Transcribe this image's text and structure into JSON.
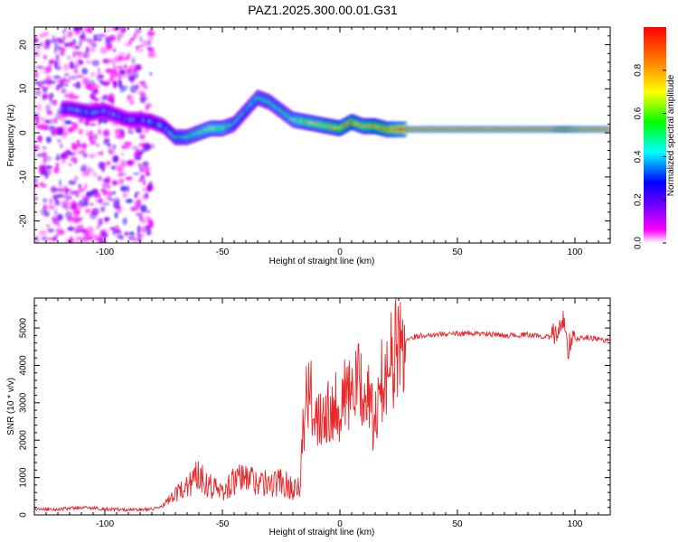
{
  "figure": {
    "title": "PAZ1.2025.300.00.01.G31"
  },
  "chart_data": [
    {
      "type": "heatmap",
      "title": "PAZ1.2025.300.00.01.G31",
      "xlabel": "Height of straight line (km)",
      "ylabel": "Frequency (Hz)",
      "xlim": [
        -130,
        115
      ],
      "ylim": [
        -25,
        24
      ],
      "xticks": [
        -100,
        -50,
        0,
        50,
        100
      ],
      "yticks": [
        -20,
        -10,
        0,
        10,
        20
      ],
      "colorbar": {
        "label": "Normalized spectral amplitude",
        "range": [
          0,
          1
        ],
        "ticks": [
          "0.0",
          "0.2",
          "0.4",
          "0.6",
          "0.8"
        ],
        "colors": [
          "#ffffff",
          "#ff00ff",
          "#8000ff",
          "#0000ff",
          "#00ffff",
          "#00ff00",
          "#ffff00",
          "#ff8000",
          "#ff0000"
        ]
      },
      "ridge": {
        "x": [
          -115,
          -110,
          -105,
          -100,
          -95,
          -90,
          -85,
          -80,
          -75,
          -70,
          -65,
          -60,
          -55,
          -50,
          -45,
          -40,
          -35,
          -30,
          -25,
          -20,
          -15,
          -10,
          -5,
          0,
          5,
          10,
          15,
          20,
          25,
          30,
          40,
          50,
          60,
          70,
          80,
          90,
          95,
          100,
          105,
          110,
          115
        ],
        "y": [
          5.5,
          5,
          4.5,
          5,
          4,
          3,
          3,
          2.5,
          1.5,
          -1,
          -1,
          0,
          1,
          1,
          2,
          5,
          8,
          7,
          5,
          3,
          2.5,
          2,
          1.5,
          1,
          2.5,
          1.5,
          1.5,
          0.8,
          0.8,
          0.8,
          0.8,
          0.8,
          0.8,
          0.8,
          0.8,
          0.8,
          0.8,
          0.8,
          0.8,
          0.8,
          0.8
        ],
        "amplitude": [
          0.3,
          0.35,
          0.35,
          0.3,
          0.3,
          0.3,
          0.3,
          0.35,
          0.35,
          0.45,
          0.5,
          0.55,
          0.6,
          0.6,
          0.45,
          0.45,
          0.5,
          0.5,
          0.5,
          0.55,
          0.65,
          0.65,
          0.7,
          0.75,
          0.8,
          0.7,
          0.8,
          0.85,
          0.95,
          0.95,
          0.95,
          0.95,
          0.95,
          0.95,
          0.95,
          0.95,
          0.8,
          0.9,
          0.95,
          0.95,
          0.95
        ]
      }
    },
    {
      "type": "line",
      "xlabel": "Height of straight line (km)",
      "ylabel": "SNR (10 * v/v)",
      "xlim": [
        -130,
        115
      ],
      "ylim": [
        0,
        5800
      ],
      "xticks": [
        -100,
        -50,
        0,
        50,
        100
      ],
      "yticks": [
        0,
        1000,
        2000,
        3000,
        4000,
        5000
      ],
      "color": "#e8282a",
      "series": [
        {
          "name": "SNR",
          "x": [
            -130,
            -120,
            -110,
            -100,
            -90,
            -80,
            -75,
            -70,
            -65,
            -60,
            -55,
            -50,
            -45,
            -40,
            -35,
            -30,
            -25,
            -20,
            -17,
            -15,
            -13,
            -10,
            -5,
            0,
            5,
            10,
            15,
            18,
            20,
            22,
            25,
            30,
            35,
            40,
            50,
            60,
            70,
            80,
            90,
            93,
            95,
            97,
            100,
            105,
            110,
            115
          ],
          "y": [
            150,
            150,
            200,
            160,
            130,
            150,
            250,
            500,
            800,
            1100,
            800,
            600,
            900,
            1000,
            900,
            800,
            900,
            700,
            900,
            2800,
            3200,
            2700,
            2900,
            3000,
            3300,
            3500,
            2400,
            3600,
            4200,
            4100,
            4500,
            4750,
            4800,
            4830,
            4850,
            4850,
            4800,
            4820,
            4750,
            4900,
            5300,
            4500,
            4700,
            4750,
            4700,
            4650
          ]
        }
      ]
    }
  ]
}
